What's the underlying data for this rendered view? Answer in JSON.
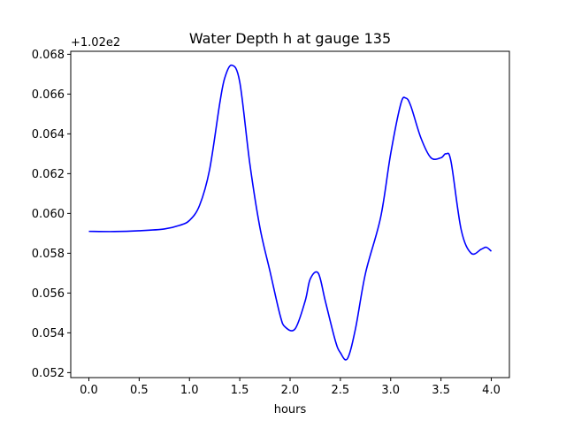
{
  "chart_data": {
    "type": "line",
    "title": "Water Depth h at gauge 135",
    "xlabel": "hours",
    "ylabel": "",
    "offset_label": "+1.02e2",
    "xlim": [
      -0.18,
      4.18
    ],
    "ylim": [
      0.05175,
      0.06815
    ],
    "x_ticks": [
      0.0,
      0.5,
      1.0,
      1.5,
      2.0,
      2.5,
      3.0,
      3.5,
      4.0
    ],
    "x_tick_labels": [
      "0.0",
      "0.5",
      "1.0",
      "1.5",
      "2.0",
      "2.5",
      "3.0",
      "3.5",
      "4.0"
    ],
    "y_ticks": [
      0.052,
      0.054,
      0.056,
      0.058,
      0.06,
      0.062,
      0.064,
      0.066,
      0.068
    ],
    "y_tick_labels": [
      "0.052",
      "0.054",
      "0.056",
      "0.058",
      "0.060",
      "0.062",
      "0.064",
      "0.066",
      "0.068"
    ],
    "grid": false,
    "series": [
      {
        "color": "#0000ff",
        "x": [
          0.0,
          0.25,
          0.5,
          0.75,
          0.9,
          1.0,
          1.1,
          1.2,
          1.3,
          1.35,
          1.42,
          1.5,
          1.6,
          1.7,
          1.8,
          1.9,
          1.95,
          2.05,
          2.15,
          2.2,
          2.28,
          2.35,
          2.45,
          2.5,
          2.57,
          2.65,
          2.75,
          2.9,
          3.0,
          3.1,
          3.15,
          3.2,
          3.3,
          3.4,
          3.5,
          3.55,
          3.6,
          3.7,
          3.8,
          3.9,
          3.95,
          4.0
        ],
        "y": [
          0.0591,
          0.05909,
          0.05913,
          0.05922,
          0.0594,
          0.05965,
          0.0604,
          0.0622,
          0.0655,
          0.0668,
          0.06745,
          0.0666,
          0.0625,
          0.0593,
          0.0571,
          0.0549,
          0.0543,
          0.0542,
          0.0556,
          0.0567,
          0.057,
          0.0556,
          0.0536,
          0.053,
          0.0527,
          0.0542,
          0.057,
          0.0598,
          0.063,
          0.0655,
          0.0658,
          0.0654,
          0.0638,
          0.0628,
          0.0628,
          0.063,
          0.0626,
          0.0592,
          0.058,
          0.0582,
          0.0583,
          0.0581
        ]
      }
    ]
  }
}
